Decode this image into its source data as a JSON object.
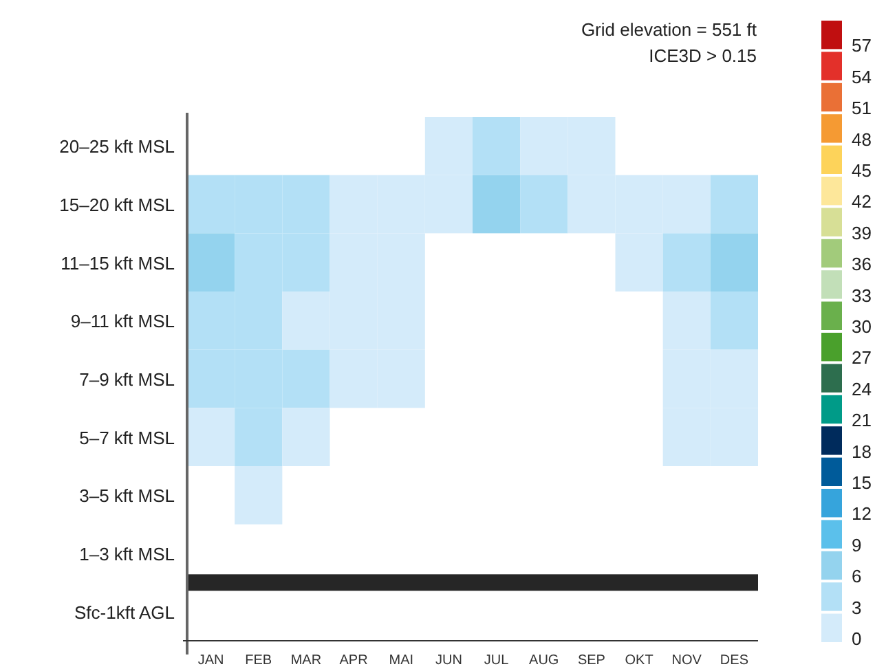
{
  "chart_data": {
    "type": "heatmap",
    "title": "Grid elevation = 551 ft",
    "subtitle": "ICE3D > 0.15",
    "categories": [
      "JAN",
      "FEB",
      "MAR",
      "APR",
      "MAI",
      "JUN",
      "JUL",
      "AUG",
      "SEP",
      "OKT",
      "NOV",
      "DES"
    ],
    "y_categories": [
      "20–25 kft MSL",
      "15–20 kft MSL",
      "11–15 kft MSL",
      "9–11 kft MSL",
      "7–9 kft MSL",
      "5–7 kft MSL",
      "3–5 kft MSL",
      "1–3 kft MSL",
      "Sfc-1kft AGL"
    ],
    "cells": [
      [
        null,
        null,
        null,
        null,
        null,
        1.5,
        4.5,
        1.5,
        1.5,
        null,
        null,
        null
      ],
      [
        4.5,
        4.5,
        4.5,
        1.5,
        1.5,
        1.5,
        7.5,
        4.5,
        1.5,
        1.5,
        1.5,
        4.5
      ],
      [
        7.5,
        4.5,
        4.5,
        1.5,
        1.5,
        null,
        null,
        null,
        null,
        1.5,
        4.5,
        7.5
      ],
      [
        4.5,
        4.5,
        1.5,
        1.5,
        1.5,
        null,
        null,
        null,
        null,
        null,
        1.5,
        4.5
      ],
      [
        4.5,
        4.5,
        4.5,
        1.5,
        1.5,
        null,
        null,
        null,
        null,
        null,
        1.5,
        1.5
      ],
      [
        1.5,
        4.5,
        1.5,
        null,
        null,
        null,
        null,
        null,
        null,
        null,
        1.5,
        1.5
      ],
      [
        null,
        1.5,
        null,
        null,
        null,
        null,
        null,
        null,
        null,
        null,
        null,
        null
      ],
      [
        null,
        null,
        null,
        null,
        null,
        null,
        null,
        null,
        null,
        null,
        null,
        null
      ],
      [
        null,
        null,
        null,
        null,
        null,
        null,
        null,
        null,
        null,
        null,
        null,
        null
      ]
    ],
    "clim": [
      0,
      60
    ],
    "cticks": [
      0,
      3,
      6,
      9,
      12,
      15,
      18,
      21,
      24,
      27,
      30,
      33,
      36,
      39,
      42,
      45,
      48,
      51,
      54,
      57
    ],
    "colors": [
      "#d4ebfa",
      "#b3e0f6",
      "#94d3ee",
      "#5bc0eb",
      "#36a4dc",
      "#005b9a",
      "#002b5c",
      "#009b88",
      "#2d6e4e",
      "#4aa02c",
      "#6ab04c",
      "#c2dfb8",
      "#a2cb7b",
      "#d7df96",
      "#fde79a",
      "#fdd35a",
      "#f59a33",
      "#ea7036",
      "#e3302a",
      "#c00f10"
    ],
    "bands": [
      {
        "axis": "y",
        "from": "1–3 kft MSL",
        "to": "Sfc-1kft AGL",
        "color": "#262626"
      }
    ]
  }
}
